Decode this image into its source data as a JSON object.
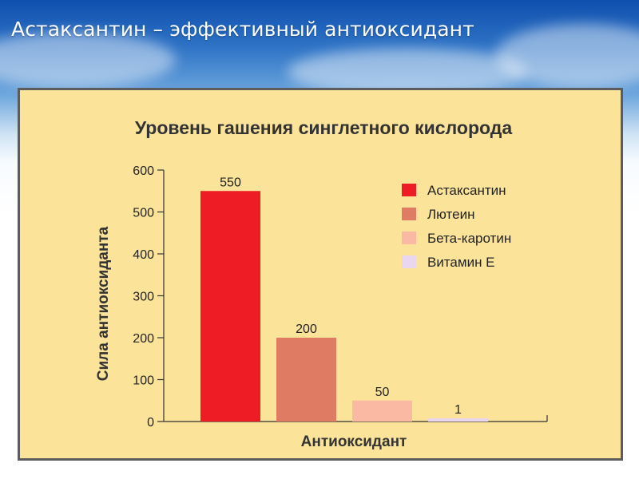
{
  "slide": {
    "title": "Астаксантин – эффективный антиоксидант"
  },
  "chart_data": {
    "type": "bar",
    "title": "Уровень гашения синглетного кислорода",
    "xlabel": "Антиоксидант",
    "ylabel": "Сила антиоксиданта",
    "ylim": [
      0,
      600
    ],
    "y_ticks": [
      0,
      100,
      200,
      300,
      400,
      500,
      600
    ],
    "grid": false,
    "legend_position": "top-right",
    "categories": [
      "Астаксантин",
      "Лютеин",
      "Бета-каротин",
      "Витамин Е"
    ],
    "values": [
      550,
      200,
      50,
      1
    ],
    "data_labels": [
      "550",
      "200",
      "50",
      "1"
    ],
    "colors": [
      "#ee1c25",
      "#e07b63",
      "#f9b9a3",
      "#ead6ee"
    ]
  }
}
